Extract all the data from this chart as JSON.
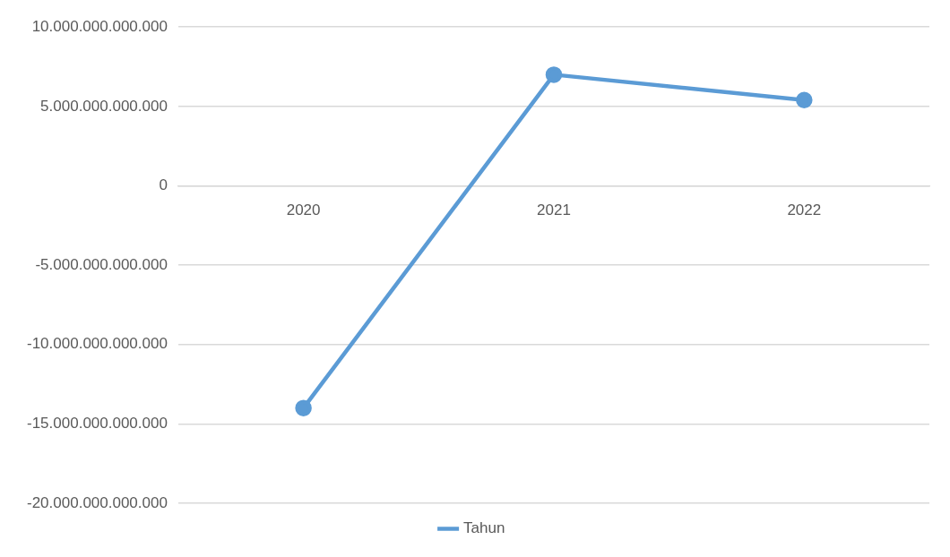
{
  "chart_data": {
    "type": "line",
    "categories": [
      "2020",
      "2021",
      "2022"
    ],
    "series": [
      {
        "name": "Tahun",
        "color": "#5b9bd5",
        "values": [
          -14000000000000,
          7000000000000,
          5400000000000
        ]
      }
    ],
    "ylim": [
      -20000000000000,
      10000000000000
    ],
    "yticks": [
      {
        "value": 10000000000000,
        "label": "10.000.000.000.000"
      },
      {
        "value": 5000000000000,
        "label": "5.000.000.000.000"
      },
      {
        "value": 0,
        "label": "0"
      },
      {
        "value": -5000000000000,
        "label": "-5.000.000.000.000"
      },
      {
        "value": -10000000000000,
        "label": "-10.000.000.000.000"
      },
      {
        "value": -15000000000000,
        "label": "-15.000.000.000.000"
      },
      {
        "value": -20000000000000,
        "label": "-20.000.000.000.000"
      }
    ],
    "grid": "y",
    "legend": "bottom",
    "marker": "circle",
    "line_style": "solid"
  }
}
